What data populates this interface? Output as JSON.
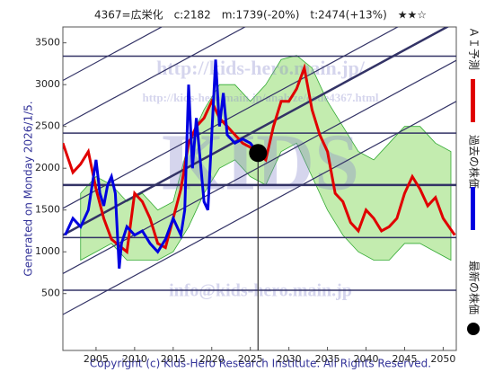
{
  "chart_data": {
    "type": "line",
    "title": "4367=広栄化　c:2182　m:1739(-20%)　t:2474(+13%)　★★☆",
    "side_note": "Generated on Monday 2026/1/5.",
    "copyright": "Copyright (c) Kids-Hero Research Institute. All Rights Reserved.",
    "watermarks": [
      "http://kids-hero.main.jp/",
      "http://kids-hero.main.jp/analyze/code4367.html",
      "KIDS",
      "info@kids-hero.main.jp"
    ],
    "xlim": [
      2000.7,
      2051.7
    ],
    "ylim": [
      -180,
      3690
    ],
    "xticks": [
      2005,
      2010,
      2015,
      2020,
      2025,
      2030,
      2035,
      2040,
      2045,
      2050
    ],
    "yticks": [
      500,
      1000,
      1500,
      2000,
      2500,
      3000,
      3500
    ],
    "hlines": [
      3340,
      2420,
      1800,
      1170,
      540
    ],
    "trend_lines": [
      {
        "x": [
          2000.7,
          2051.7
        ],
        "values": [
          250,
          2800
        ]
      },
      {
        "x": [
          2000.7,
          2051.7
        ],
        "values": [
          740,
          3290
        ]
      },
      {
        "x": [
          2000.7,
          2051.7
        ],
        "values": [
          1200,
          3750
        ]
      },
      {
        "x": [
          2000.7,
          2051.7
        ],
        "values": [
          1520,
          4070
        ]
      },
      {
        "x": [
          2000.7,
          2051.7
        ],
        "values": [
          2510,
          5060
        ]
      },
      {
        "x": [
          2000.7,
          2051.7
        ],
        "values": [
          3050,
          5600
        ]
      }
    ],
    "band": {
      "color": "#9be07a",
      "x": [
        2003,
        2005,
        2007,
        2009,
        2011,
        2013,
        2015,
        2017,
        2019,
        2021,
        2023,
        2025,
        2027,
        2029,
        2031,
        2033,
        2035,
        2037,
        2039,
        2041,
        2043,
        2045,
        2047,
        2049,
        2051
      ],
      "upper": [
        1700,
        1900,
        1800,
        1600,
        1700,
        1500,
        1600,
        2300,
        2700,
        3000,
        3000,
        2800,
        3000,
        3300,
        3350,
        3200,
        2800,
        2500,
        2200,
        2100,
        2300,
        2500,
        2500,
        2300,
        2200
      ],
      "lower": [
        900,
        1000,
        1100,
        900,
        900,
        900,
        1000,
        1300,
        1700,
        2000,
        2100,
        1900,
        1800,
        2200,
        2300,
        1900,
        1500,
        1200,
        1000,
        900,
        900,
        1100,
        1100,
        1000,
        900
      ]
    },
    "series": [
      {
        "name": "ＡＩ予測",
        "color": "#e00000",
        "x": [
          2000.7,
          2002,
          2003,
          2004,
          2005,
          2006,
          2007,
          2009,
          2010,
          2011,
          2012,
          2013,
          2014,
          2015,
          2016,
          2017,
          2018,
          2019,
          2020,
          2021,
          2022,
          2023,
          2024,
          2025,
          2026,
          2027,
          2028,
          2029,
          2030,
          2031,
          2032,
          2033,
          2034,
          2035,
          2036,
          2037,
          2038,
          2039,
          2040,
          2041,
          2042,
          2043,
          2044,
          2045,
          2046,
          2047,
          2048,
          2049,
          2050,
          2051.5
        ],
        "values": [
          2300,
          1950,
          2050,
          2200,
          1750,
          1400,
          1150,
          1000,
          1700,
          1600,
          1400,
          1100,
          1050,
          1400,
          1750,
          2300,
          2500,
          2600,
          2800,
          2600,
          2500,
          2400,
          2300,
          2250,
          2182,
          2100,
          2500,
          2800,
          2800,
          2950,
          3200,
          2700,
          2400,
          2200,
          1700,
          1600,
          1350,
          1250,
          1500,
          1400,
          1250,
          1300,
          1400,
          1700,
          1900,
          1750,
          1550,
          1650,
          1400,
          1200
        ]
      },
      {
        "name": "過去の株価",
        "color": "#0000e0",
        "x": [
          2001,
          2002,
          2003,
          2004,
          2005,
          2005.5,
          2006,
          2006.5,
          2007,
          2007.5,
          2008,
          2008.3,
          2009,
          2010,
          2011,
          2012,
          2013,
          2014,
          2015,
          2016,
          2016.5,
          2017,
          2017.5,
          2018,
          2019,
          2019.5,
          2020,
          2020.5,
          2021,
          2021.5,
          2022,
          2023,
          2024,
          2025,
          2026
        ],
        "values": [
          1200,
          1400,
          1300,
          1500,
          2100,
          1700,
          1550,
          1800,
          1900,
          1700,
          800,
          1100,
          1300,
          1200,
          1250,
          1100,
          1000,
          1150,
          1400,
          1200,
          1500,
          3000,
          2000,
          2600,
          1600,
          1500,
          2400,
          3300,
          2500,
          2900,
          2400,
          2300,
          2350,
          2300,
          2182
        ]
      },
      {
        "name": "最新の株価",
        "color": "#000000",
        "x": [
          2026
        ],
        "values": [
          2182
        ]
      }
    ]
  }
}
